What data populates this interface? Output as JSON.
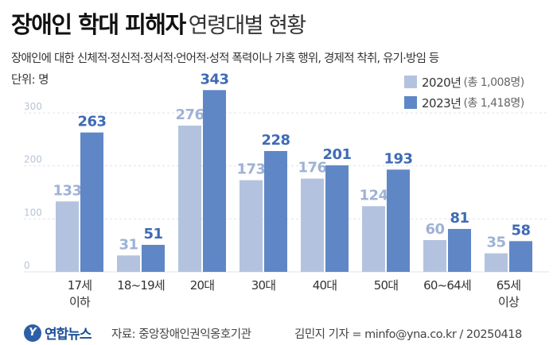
{
  "header": {
    "title_bold": "장애인 학대 피해자",
    "title_light": "연령대별 현황",
    "subtitle": "장애인에 대한 신체적·정신적·정서적·언어적·성적 폭력이나 가혹 행위, 경제적 착취, 유기·방임 등",
    "unit": "단위: 명"
  },
  "colors": {
    "series_2020": "#b3c3df",
    "series_2023": "#5f87c6",
    "label_2020": "#9fb2d4",
    "label_2023": "#3f6bb5",
    "grid": "#dde3ee",
    "tick": "#b9c4d6"
  },
  "chart_data": {
    "type": "bar",
    "categories": [
      [
        "17세",
        "이하"
      ],
      [
        "18~19세"
      ],
      [
        "20대"
      ],
      [
        "30대"
      ],
      [
        "40대"
      ],
      [
        "50대"
      ],
      [
        "60~64세"
      ],
      [
        "65세",
        "이상"
      ]
    ],
    "series": [
      {
        "name": "2020년",
        "total": "(총 1,008명)",
        "values": [
          133,
          31,
          276,
          173,
          176,
          124,
          60,
          35
        ]
      },
      {
        "name": "2023년",
        "total": "(총 1,418명)",
        "values": [
          263,
          51,
          343,
          228,
          201,
          193,
          81,
          58
        ]
      }
    ],
    "ylim": [
      0,
      300
    ],
    "yticks": [
      0,
      100,
      200,
      300
    ],
    "grid": true,
    "legend": "top-right"
  },
  "footer": {
    "logo_text": "연합뉴스",
    "source": "자료: 중앙장애인권익옹호기관",
    "credit": "김민지 기자 = minfo@yna.co.kr / 20250418"
  }
}
